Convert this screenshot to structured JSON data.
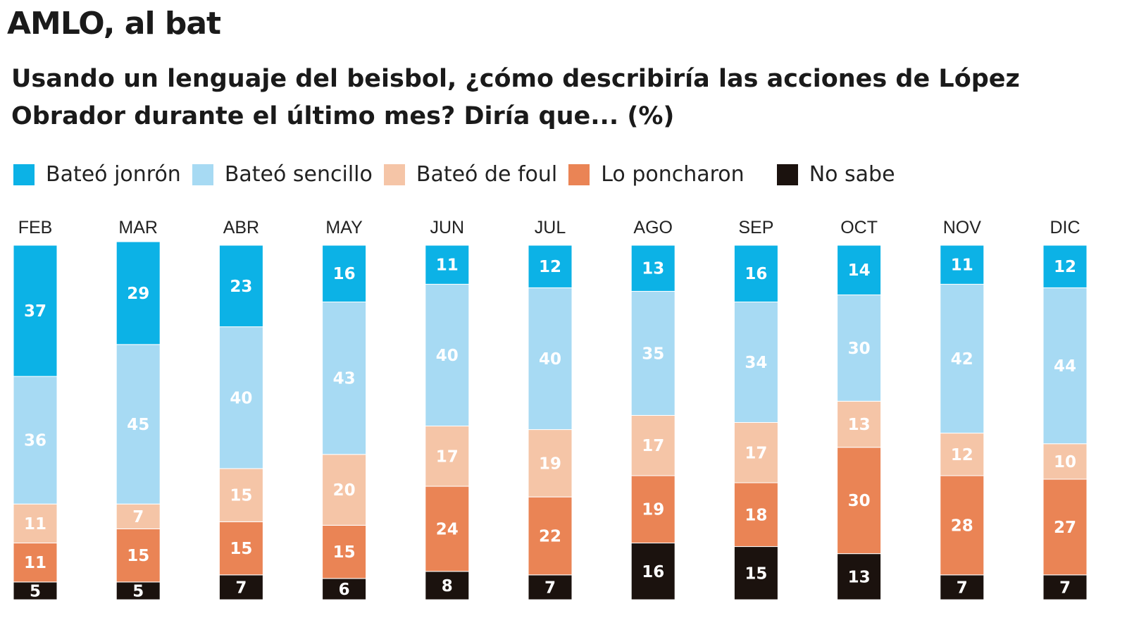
{
  "title": "AMLO, al bat",
  "subtitle": "Usando un lenguaje del beisbol, ¿cómo describiría las acciones de López Obrador durante el último mes? Diría que... (%)",
  "chart_data": {
    "type": "bar",
    "stacked": true,
    "orientation": "vertical",
    "categories": [
      "FEB",
      "MAR",
      "ABR",
      "MAY",
      "JUN",
      "JUL",
      "AGO",
      "SEP",
      "OCT",
      "NOV",
      "DIC"
    ],
    "series": [
      {
        "name": "Bateó jonrón",
        "color": "#0cb2e6",
        "values": [
          37,
          29,
          23,
          16,
          11,
          12,
          13,
          16,
          14,
          11,
          12
        ]
      },
      {
        "name": "Bateó sencillo",
        "color": "#a7daf3",
        "values": [
          36,
          45,
          40,
          43,
          40,
          40,
          35,
          34,
          30,
          42,
          44
        ]
      },
      {
        "name": "Bateó de foul",
        "color": "#f5c5a7",
        "values": [
          11,
          7,
          15,
          20,
          17,
          19,
          17,
          17,
          13,
          12,
          10
        ]
      },
      {
        "name": "Lo poncharon",
        "color": "#ea8455",
        "values": [
          11,
          15,
          15,
          15,
          24,
          22,
          19,
          18,
          30,
          28,
          27
        ]
      },
      {
        "name": "No sabe",
        "color": "#1b120e",
        "values": [
          5,
          5,
          7,
          6,
          8,
          7,
          16,
          15,
          13,
          7,
          7
        ]
      }
    ],
    "legend": "top",
    "grid": false
  }
}
